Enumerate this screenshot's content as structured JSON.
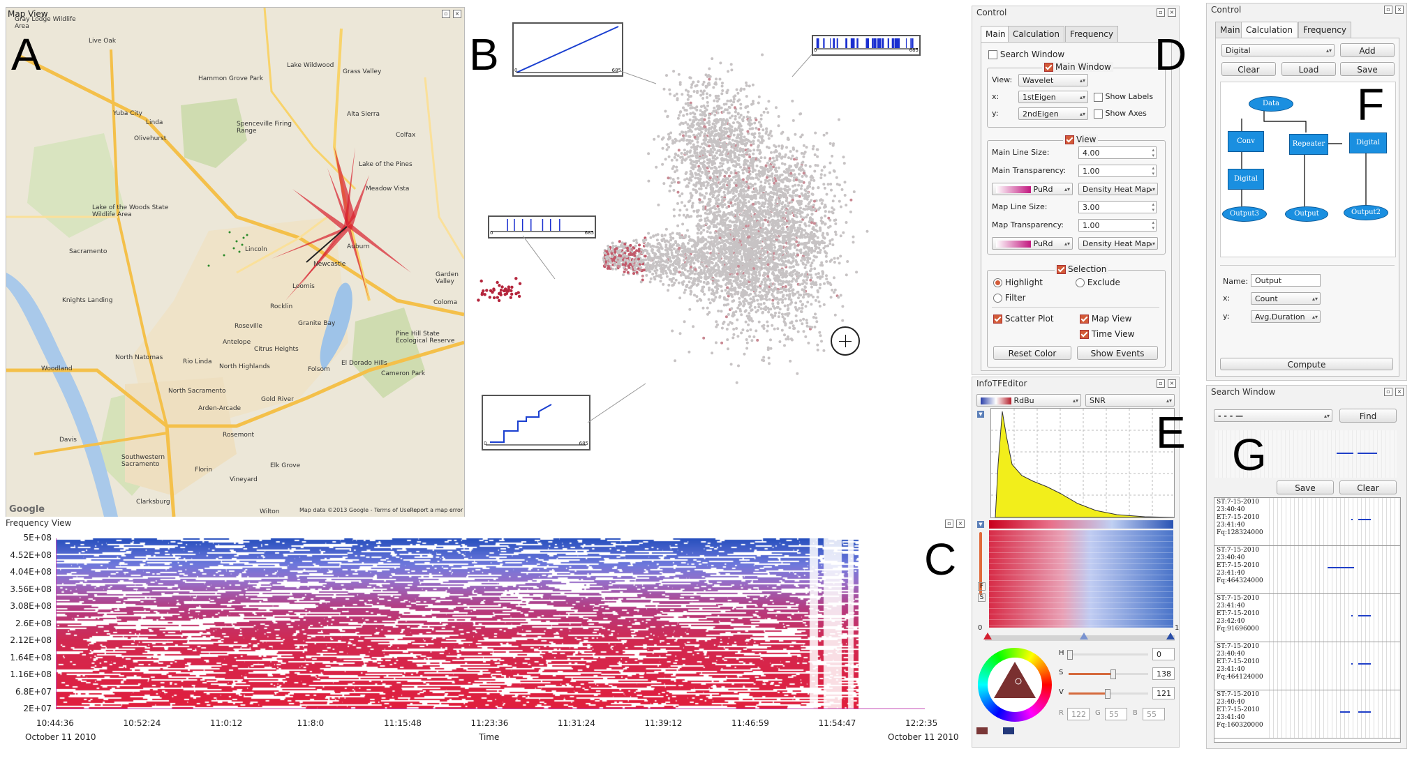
{
  "figure_labels": {
    "a": "A",
    "b": "B",
    "c": "C",
    "d": "D",
    "e": "E",
    "f": "F",
    "g": "G"
  },
  "map_view": {
    "title": "Map View",
    "places": [
      "Gray Lodge Wildlife Area",
      "Live Oak",
      "Lake Wildwood",
      "Grass Valley",
      "Hammon Grove Park",
      "Yuba City",
      "Linda",
      "Alta Sierra",
      "Spenceville Firing Range",
      "Olivehurst",
      "Colfax",
      "Lake of the Pines",
      "Meadow Vista",
      "Lake of the Woods State Wildlife Area",
      "Lincoln",
      "Auburn",
      "Newcastle",
      "Sacramento",
      "Knights Landing",
      "Rocklin",
      "Loomis",
      "Granite Bay",
      "Coloma",
      "Garden Valley",
      "Roseville",
      "Pine Hill State Ecological Reserve",
      "North Natomas",
      "Antelope",
      "Citrus Heights",
      "Rio Linda",
      "North Highlands",
      "El Dorado Hills",
      "Woodland",
      "Folsom",
      "Cameron Park",
      "North Sacramento",
      "Arden-Arcade",
      "Gold River",
      "Davis",
      "Rosemont",
      "Southwestern Sacramento",
      "Florin",
      "Vineyard",
      "Clarksburg",
      "Elk Grove",
      "Wilton"
    ],
    "footer": "Map data ©2013 Google - Terms of Use",
    "report_link": "Report a map error",
    "google_logo": "Google"
  },
  "scatter_view": {
    "inset_ticks": {
      "start": "0",
      "end": "685"
    }
  },
  "frequency_view": {
    "title": "Frequency View",
    "y_ticks": [
      "5E+08",
      "4.52E+08",
      "4.04E+08",
      "3.56E+08",
      "3.08E+08",
      "2.6E+08",
      "2.12E+08",
      "1.64E+08",
      "1.16E+08",
      "6.8E+07",
      "2E+07"
    ],
    "x_ticks": [
      "10:44:36",
      "10:52:24",
      "11:0:12",
      "11:8:0",
      "11:15:48",
      "11:23:36",
      "11:31:24",
      "11:39:12",
      "11:46:59",
      "11:54:47",
      "12:2:35"
    ],
    "date_left": "October 11 2010",
    "date_right": "October 11 2010",
    "x_label": "Time"
  },
  "control_main": {
    "title": "Control",
    "tabs": [
      "Main",
      "Calculation",
      "Frequency"
    ],
    "search_window": "Search Window",
    "main_window": {
      "title": "Main Window",
      "view_label": "View:",
      "view_value": "Wavelet",
      "x_label": "x:",
      "x_value": "1stEigen",
      "y_label": "y:",
      "y_value": "2ndEigen",
      "show_labels": "Show Labels",
      "show_axes": "Show Axes"
    },
    "view": {
      "title": "View",
      "main_line_size_label": "Main Line Size:",
      "main_line_size": "4.00",
      "main_transparency_label": "Main Transparency:",
      "main_transparency": "1.00",
      "colormap1": "PuRd",
      "heatmap1": "Density Heat Map",
      "map_line_size_label": "Map Line Size:",
      "map_line_size": "3.00",
      "map_transparency_label": "Map Transparency:",
      "map_transparency": "1.00",
      "colormap2": "PuRd",
      "heatmap2": "Density Heat Map"
    },
    "selection": {
      "title": "Selection",
      "highlight": "Highlight",
      "exclude": "Exclude",
      "filter": "Filter",
      "scatter_plot": "Scatter Plot",
      "map_view": "Map View",
      "time_view": "Time View",
      "reset_color": "Reset Color",
      "show_events": "Show Events"
    }
  },
  "infotf": {
    "title": "InfoTFEditor",
    "colormap": "RdBu",
    "attribute": "SNR",
    "range_min": "0",
    "range_max": "1",
    "side_f": "F",
    "side_s": "S",
    "h_label": "H",
    "h_value": "0",
    "s_label": "S",
    "s_value": "138",
    "v_label": "V",
    "v_value": "121",
    "r_label": "R",
    "r_value": "122",
    "g_label": "G",
    "g_value": "55",
    "b_label": "B",
    "b_value": "55"
  },
  "control_calc": {
    "title": "Control",
    "tabs": [
      "Main",
      "Calculation",
      "Frequency"
    ],
    "type_value": "Digital",
    "add": "Add",
    "clear": "Clear",
    "load": "Load",
    "save": "Save",
    "nodes": {
      "data": "Data",
      "conv": "Conv",
      "repeater": "Repeater",
      "digital_right": "Digital",
      "digital_left": "Digital",
      "output3": "Output3",
      "output": "Output",
      "output2": "Output2"
    },
    "name_label": "Name:",
    "name_value": "Output",
    "x_label": "x:",
    "x_value": "Count",
    "y_label": "y:",
    "y_value": "Avg.Duration",
    "compute": "Compute"
  },
  "search_window": {
    "title": "Search Window",
    "pattern_value": "- - -  —",
    "find": "Find",
    "save": "Save",
    "clear": "Clear",
    "results": [
      {
        "st": "ST:7-15-2010",
        "st_time": "23:40:40",
        "et": "ET:7-15-2010",
        "et_time": "23:41:40",
        "fq": "Fq:128324000"
      },
      {
        "st": "ST:7-15-2010",
        "st_time": "23:40:40",
        "et": "ET:7-15-2010",
        "et_time": "23:41:40",
        "fq": "Fq:464324000"
      },
      {
        "st": "ST:7-15-2010",
        "st_time": "23:41:40",
        "et": "ET:7-15-2010",
        "et_time": "23:42:40",
        "fq": "Fq:91696000"
      },
      {
        "st": "ST:7-15-2010",
        "st_time": "23:40:40",
        "et": "ET:7-15-2010",
        "et_time": "23:41:40",
        "fq": "Fq:464124000"
      },
      {
        "st": "ST:7-15-2010",
        "st_time": "23:40:40",
        "et": "ET:7-15-2010",
        "et_time": "23:41:40",
        "fq": "Fq:160320000"
      }
    ]
  },
  "colors": {
    "blue": "#1f4fbf",
    "red": "#d81e3c",
    "accent": "#d35b38",
    "flow": "#1a8fe0"
  }
}
